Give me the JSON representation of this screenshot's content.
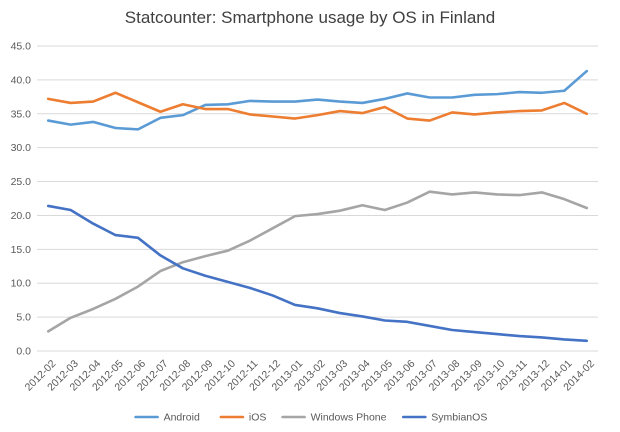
{
  "chart_data": {
    "type": "line",
    "title": "Statcounter: Smartphone usage by OS in Finland",
    "xlabel": "",
    "ylabel": "",
    "ylim": [
      0,
      45
    ],
    "yticks": [
      "0.0",
      "5.0",
      "10.0",
      "15.0",
      "20.0",
      "25.0",
      "30.0",
      "35.0",
      "40.0",
      "45.0"
    ],
    "grid": true,
    "legend_position": "bottom",
    "categories": [
      "2012-02",
      "2012-03",
      "2012-04",
      "2012-05",
      "2012-06",
      "2012-07",
      "2012-08",
      "2012-09",
      "2012-10",
      "2012-11",
      "2012-12",
      "2013-01",
      "2013-02",
      "2013-03",
      "2013-04",
      "2013-05",
      "2013-06",
      "2013-07",
      "2013-08",
      "2013-09",
      "2013-10",
      "2013-11",
      "2013-12",
      "2014-01",
      "2014-02"
    ],
    "series": [
      {
        "name": "Android",
        "color": "#5B9BD5",
        "values": [
          34.0,
          33.4,
          33.8,
          32.9,
          32.7,
          34.4,
          34.8,
          36.3,
          36.4,
          36.9,
          36.8,
          36.8,
          37.1,
          36.8,
          36.6,
          37.2,
          38.0,
          37.4,
          37.4,
          37.8,
          37.9,
          38.2,
          38.1,
          38.4,
          41.3
        ]
      },
      {
        "name": "iOS",
        "color": "#ED7D31",
        "values": [
          37.2,
          36.6,
          36.8,
          38.1,
          36.7,
          35.3,
          36.4,
          35.7,
          35.7,
          34.9,
          34.6,
          34.3,
          34.8,
          35.4,
          35.1,
          36.0,
          34.3,
          34.0,
          35.2,
          34.9,
          35.2,
          35.4,
          35.5,
          36.6,
          35.0
        ]
      },
      {
        "name": "Windows Phone",
        "color": "#A5A5A5",
        "values": [
          2.9,
          4.9,
          6.2,
          7.7,
          9.5,
          11.8,
          13.1,
          14.0,
          14.8,
          16.3,
          18.1,
          19.9,
          20.2,
          20.7,
          21.5,
          20.8,
          21.9,
          23.5,
          23.1,
          23.4,
          23.1,
          23.0,
          23.4,
          22.4,
          21.1
        ]
      },
      {
        "name": "SymbianOS",
        "color": "#4472C4",
        "values": [
          21.4,
          20.8,
          18.8,
          17.1,
          16.7,
          14.1,
          12.2,
          11.1,
          10.2,
          9.3,
          8.2,
          6.8,
          6.3,
          5.6,
          5.1,
          4.5,
          4.3,
          3.7,
          3.1,
          2.8,
          2.5,
          2.2,
          2.0,
          1.7,
          1.5
        ]
      }
    ]
  }
}
